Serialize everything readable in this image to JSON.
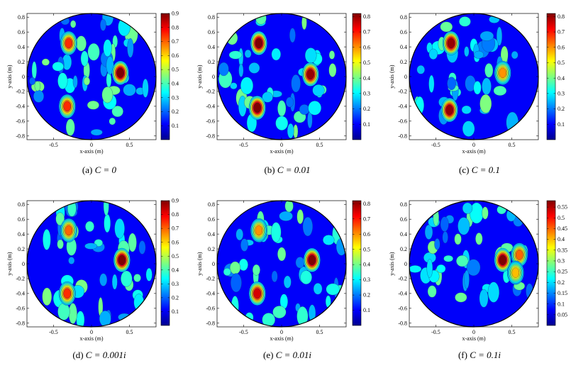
{
  "panels": [
    {
      "caption_label": "(a)",
      "caption_text": "C = 0",
      "chart_data": {
        "type": "heatmap",
        "plot": "filled contour",
        "xlabel": "x-axis (m)",
        "ylabel": "y-axis (m)",
        "xlim": [
          -0.85,
          0.85
        ],
        "ylim": [
          -0.85,
          0.85
        ],
        "x_ticks": [
          "-0.5",
          "0",
          "0.5"
        ],
        "y_ticks": [
          "0.8",
          "0.6",
          "0.4",
          "0.2",
          "0",
          "-0.2",
          "-0.4",
          "-0.6",
          "-0.8"
        ],
        "colorbar_ticks": [
          "0.9",
          "0.8",
          "0.7",
          "0.6",
          "0.5",
          "0.4",
          "0.3",
          "0.2",
          "0.1"
        ],
        "colorbar_range": [
          0,
          0.9
        ],
        "colormap": "jet",
        "domain_boundary": "circle, radius 0.85",
        "peaks": [
          {
            "x": -0.3,
            "y": 0.45,
            "value": 0.75
          },
          {
            "x": 0.38,
            "y": 0.05,
            "value": 0.9
          },
          {
            "x": -0.32,
            "y": -0.4,
            "value": 0.75
          }
        ]
      }
    },
    {
      "caption_label": "(b)",
      "caption_text": "C = 0.01",
      "chart_data": {
        "type": "heatmap",
        "plot": "filled contour",
        "xlabel": "x-axis (m)",
        "ylabel": "y-axis (m)",
        "xlim": [
          -0.85,
          0.85
        ],
        "ylim": [
          -0.85,
          0.85
        ],
        "x_ticks": [
          "-0.5",
          "0",
          "0.5"
        ],
        "y_ticks": [
          "0.8",
          "0.6",
          "0.4",
          "0.2",
          "0",
          "-0.2",
          "-0.4",
          "-0.6",
          "-0.8"
        ],
        "colorbar_ticks": [
          "0.8",
          "0.7",
          "0.6",
          "0.5",
          "0.4",
          "0.3",
          "0.2",
          "0.1"
        ],
        "colorbar_range": [
          0,
          0.82
        ],
        "colormap": "jet",
        "domain_boundary": "circle, radius 0.85",
        "peaks": [
          {
            "x": -0.3,
            "y": 0.45,
            "value": 0.82
          },
          {
            "x": 0.38,
            "y": 0.03,
            "value": 0.8
          },
          {
            "x": -0.32,
            "y": -0.42,
            "value": 0.82
          }
        ]
      }
    },
    {
      "caption_label": "(c)",
      "caption_text": "C = 0.1",
      "chart_data": {
        "type": "heatmap",
        "plot": "filled contour",
        "xlabel": "x-axis (m)",
        "ylabel": "y-axis (m)",
        "xlim": [
          -0.85,
          0.85
        ],
        "ylim": [
          -0.85,
          0.85
        ],
        "x_ticks": [
          "-0.5",
          "0",
          "0.5"
        ],
        "y_ticks": [
          "0.8",
          "0.6",
          "0.4",
          "0.2",
          "0",
          "-0.2",
          "-0.4",
          "-0.6",
          "-0.8"
        ],
        "colorbar_ticks": [
          "0.8",
          "0.7",
          "0.6",
          "0.5",
          "0.4",
          "0.3",
          "0.2",
          "0.1"
        ],
        "colorbar_range": [
          0,
          0.82
        ],
        "colormap": "jet",
        "domain_boundary": "circle, radius 0.85",
        "peaks": [
          {
            "x": -0.3,
            "y": 0.45,
            "value": 0.8
          },
          {
            "x": 0.38,
            "y": 0.05,
            "value": 0.6
          },
          {
            "x": -0.32,
            "y": -0.45,
            "value": 0.8
          }
        ]
      }
    },
    {
      "caption_label": "(d)",
      "caption_text": "C = 0.001i",
      "chart_data": {
        "type": "heatmap",
        "plot": "filled contour",
        "xlabel": "x-axis (m)",
        "ylabel": "y-axis (m)",
        "xlim": [
          -0.85,
          0.85
        ],
        "ylim": [
          -0.85,
          0.85
        ],
        "x_ticks": [
          "-0.5",
          "0",
          "0.5"
        ],
        "y_ticks": [
          "0.8",
          "0.6",
          "0.4",
          "0.2",
          "0",
          "-0.2",
          "-0.4",
          "-0.6",
          "-0.8"
        ],
        "colorbar_ticks": [
          "0.9",
          "0.8",
          "0.7",
          "0.6",
          "0.5",
          "0.4",
          "0.3",
          "0.2",
          "0.1"
        ],
        "colorbar_range": [
          0,
          0.9
        ],
        "colormap": "jet",
        "domain_boundary": "circle, radius 0.85",
        "peaks": [
          {
            "x": -0.3,
            "y": 0.45,
            "value": 0.7
          },
          {
            "x": 0.4,
            "y": 0.05,
            "value": 0.9
          },
          {
            "x": -0.32,
            "y": -0.4,
            "value": 0.75
          }
        ]
      }
    },
    {
      "caption_label": "(e)",
      "caption_text": "C = 0.01i",
      "chart_data": {
        "type": "heatmap",
        "plot": "filled contour",
        "xlabel": "x-axis (m)",
        "ylabel": "y-axis (m)",
        "xlim": [
          -0.85,
          0.85
        ],
        "ylim": [
          -0.85,
          0.85
        ],
        "x_ticks": [
          "-0.5",
          "0",
          "0.5"
        ],
        "y_ticks": [
          "0.8",
          "0.6",
          "0.4",
          "0.2",
          "0",
          "-0.2",
          "-0.4",
          "-0.6",
          "-0.8"
        ],
        "colorbar_ticks": [
          "0.8",
          "0.7",
          "0.6",
          "0.5",
          "0.4",
          "0.3",
          "0.2",
          "0.1"
        ],
        "colorbar_range": [
          0,
          0.82
        ],
        "colormap": "jet",
        "domain_boundary": "circle, radius 0.85",
        "peaks": [
          {
            "x": -0.3,
            "y": 0.45,
            "value": 0.6
          },
          {
            "x": 0.4,
            "y": 0.05,
            "value": 0.82
          },
          {
            "x": -0.32,
            "y": -0.4,
            "value": 0.75
          }
        ]
      }
    },
    {
      "caption_label": "(f)",
      "caption_text": "C = 0.1i",
      "chart_data": {
        "type": "heatmap",
        "plot": "filled contour",
        "xlabel": "x-axis (m)",
        "ylabel": "y-axis (m)",
        "xlim": [
          -0.85,
          0.85
        ],
        "ylim": [
          -0.85,
          0.85
        ],
        "x_ticks": [
          "-0.5",
          "0",
          "0.5"
        ],
        "y_ticks": [
          "0.8",
          "0.6",
          "0.4",
          "0.2",
          "0",
          "-0.2",
          "-0.4",
          "-0.6",
          "-0.8"
        ],
        "colorbar_ticks": [
          "0.55",
          "0.5",
          "0.45",
          "0.4",
          "0.35",
          "0.3",
          "0.25",
          "0.2",
          "0.15",
          "0.1",
          "0.05"
        ],
        "colorbar_range": [
          0,
          0.58
        ],
        "colormap": "jet",
        "domain_boundary": "circle, radius 0.85",
        "peaks": [
          {
            "x": 0.38,
            "y": 0.05,
            "value": 0.58
          },
          {
            "x": 0.6,
            "y": 0.12,
            "value": 0.45
          },
          {
            "x": 0.55,
            "y": -0.12,
            "value": 0.4
          }
        ]
      }
    }
  ]
}
